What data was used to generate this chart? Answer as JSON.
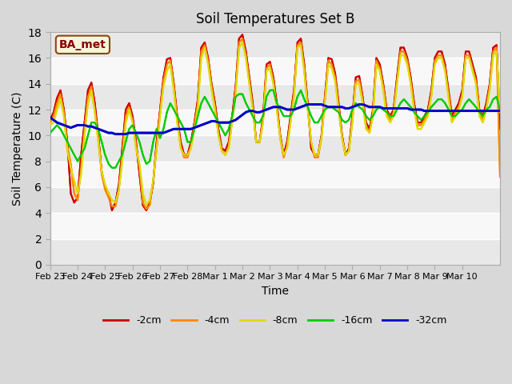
{
  "title": "Soil Temperatures Set B",
  "xlabel": "Time",
  "ylabel": "Soil Temperature (C)",
  "ylim": [
    0,
    18
  ],
  "yticks": [
    0,
    2,
    4,
    6,
    8,
    10,
    12,
    14,
    16,
    18
  ],
  "annotation": "BA_met",
  "bg_color": "#e8e8e8",
  "plot_bg_color": "#f0f0f0",
  "legend_entries": [
    "-2cm",
    "-4cm",
    "-8cm",
    "-16cm",
    "-32cm"
  ],
  "line_colors": [
    "#cc0000",
    "#ff8800",
    "#dddd00",
    "#00cc00",
    "#0000cc"
  ],
  "line_widths": [
    1.5,
    1.5,
    1.5,
    1.5,
    2.0
  ],
  "xtick_labels": [
    "Feb 23",
    "Feb 24",
    "Feb 25",
    "Feb 26",
    "Feb 27",
    "Feb 28",
    "Mar 1",
    "Mar 2",
    "Mar 3",
    "Mar 4",
    "Mar 5",
    "Mar 6",
    "Mar 7",
    "Mar 8",
    "Mar 9",
    "Mar 10"
  ],
  "x_values": [
    0,
    1,
    2,
    3,
    4,
    5,
    6,
    7,
    8,
    9,
    10,
    11,
    12,
    13,
    14,
    15,
    16,
    17,
    18,
    19,
    20,
    21,
    22,
    23,
    24,
    25,
    26,
    27,
    28,
    29,
    30,
    31,
    32,
    33,
    34,
    35,
    36,
    37,
    38,
    39,
    40,
    41,
    42,
    43,
    44,
    45,
    46,
    47,
    48,
    49,
    50,
    51,
    52,
    53,
    54,
    55,
    56,
    57,
    58,
    59,
    60,
    61,
    62,
    63,
    64,
    65,
    66,
    67,
    68,
    69,
    70,
    71,
    72,
    73,
    74,
    75,
    76,
    77,
    78,
    79,
    80,
    81,
    82,
    83,
    84,
    85,
    86,
    87,
    88,
    89,
    90,
    91,
    92,
    93,
    94,
    95,
    96,
    97,
    98,
    99,
    100,
    101,
    102,
    103,
    104,
    105,
    106,
    107,
    108,
    109,
    110,
    111,
    112,
    113,
    114,
    115,
    116,
    117,
    118,
    119,
    120,
    121,
    122,
    123,
    124,
    125,
    126,
    127,
    128,
    129,
    130,
    131
  ],
  "xtick_positions": [
    0,
    8,
    16,
    24,
    32,
    40,
    48,
    56,
    64,
    72,
    80,
    88,
    96,
    104,
    112,
    120
  ],
  "series_2cm": [
    11.2,
    11.8,
    12.9,
    13.5,
    12.0,
    9.5,
    5.5,
    4.8,
    5.2,
    8.5,
    11.0,
    13.5,
    14.1,
    12.5,
    10.0,
    7.2,
    6.0,
    5.5,
    4.2,
    4.8,
    6.2,
    9.0,
    12.0,
    12.5,
    11.5,
    9.5,
    7.0,
    4.6,
    4.2,
    4.8,
    6.3,
    9.5,
    12.0,
    14.5,
    15.9,
    16.0,
    14.0,
    11.5,
    9.5,
    8.5,
    8.5,
    9.5,
    11.0,
    12.8,
    16.8,
    17.2,
    16.0,
    14.0,
    12.5,
    10.5,
    9.0,
    8.8,
    9.5,
    11.5,
    13.8,
    17.5,
    17.8,
    16.5,
    14.5,
    12.5,
    9.5,
    9.5,
    11.5,
    15.5,
    15.7,
    14.5,
    12.5,
    10.0,
    8.5,
    9.5,
    11.5,
    13.5,
    17.2,
    17.5,
    15.5,
    12.5,
    9.0,
    8.5,
    8.5,
    10.0,
    13.0,
    16.0,
    15.9,
    14.8,
    12.5,
    10.0,
    8.5,
    9.0,
    11.5,
    14.5,
    14.6,
    13.0,
    11.0,
    10.5,
    12.0,
    16.0,
    15.5,
    14.0,
    12.0,
    11.5,
    12.0,
    14.5,
    16.8,
    16.8,
    16.0,
    14.5,
    12.5,
    11.0,
    11.0,
    11.5,
    12.0,
    13.5,
    16.0,
    16.5,
    16.5,
    15.5,
    13.5,
    11.5,
    12.0,
    12.5,
    13.5,
    16.5,
    16.5,
    15.5,
    14.5,
    12.0,
    11.5,
    12.5,
    14.0,
    16.8,
    17.0,
    10.5
  ],
  "series_4cm": [
    11.0,
    11.5,
    12.5,
    13.2,
    11.8,
    9.2,
    7.8,
    5.5,
    5.0,
    7.5,
    10.5,
    13.0,
    13.8,
    12.0,
    9.8,
    7.0,
    5.8,
    5.2,
    4.5,
    4.5,
    5.8,
    8.5,
    11.5,
    12.2,
    11.2,
    9.2,
    7.5,
    4.8,
    4.3,
    4.6,
    6.5,
    9.0,
    11.8,
    14.2,
    15.5,
    15.8,
    13.8,
    11.2,
    9.2,
    8.3,
    8.3,
    9.2,
    10.8,
    12.5,
    16.5,
    17.0,
    15.8,
    13.8,
    12.2,
    10.2,
    8.8,
    8.5,
    9.2,
    11.2,
    13.5,
    17.2,
    17.5,
    16.2,
    14.2,
    12.2,
    9.5,
    9.5,
    11.2,
    15.2,
    15.5,
    14.2,
    12.2,
    9.8,
    8.3,
    9.2,
    11.2,
    13.2,
    17.0,
    17.2,
    15.2,
    12.2,
    9.5,
    8.3,
    8.3,
    9.8,
    12.8,
    15.8,
    15.5,
    14.5,
    12.2,
    9.8,
    8.5,
    8.8,
    11.2,
    14.2,
    14.3,
    12.8,
    10.8,
    10.2,
    11.8,
    15.8,
    15.2,
    13.8,
    11.8,
    11.2,
    11.8,
    14.2,
    16.5,
    16.5,
    15.8,
    14.2,
    12.2,
    10.8,
    10.8,
    11.2,
    11.8,
    13.2,
    15.8,
    16.2,
    16.2,
    15.2,
    13.2,
    11.2,
    11.8,
    12.2,
    13.2,
    16.2,
    16.2,
    15.2,
    14.2,
    11.8,
    11.2,
    12.2,
    13.8,
    16.5,
    16.8,
    6.8
  ],
  "series_8cm": [
    10.8,
    11.0,
    12.0,
    12.8,
    11.5,
    8.8,
    7.5,
    6.5,
    5.5,
    7.0,
    10.0,
    12.5,
    13.5,
    11.8,
    9.5,
    7.2,
    6.2,
    5.5,
    5.0,
    4.8,
    5.8,
    8.0,
    11.0,
    12.0,
    11.0,
    9.0,
    7.8,
    5.5,
    4.6,
    5.0,
    6.5,
    9.0,
    11.5,
    13.8,
    15.0,
    15.5,
    13.5,
    11.0,
    9.0,
    8.5,
    8.5,
    9.0,
    10.5,
    12.2,
    16.0,
    16.8,
    15.5,
    13.5,
    12.0,
    10.0,
    8.8,
    8.5,
    9.0,
    11.0,
    13.2,
    16.8,
    17.2,
    16.0,
    14.0,
    12.0,
    9.5,
    9.5,
    11.0,
    15.0,
    15.2,
    14.0,
    12.0,
    9.8,
    8.5,
    9.0,
    11.0,
    13.0,
    16.8,
    17.0,
    15.0,
    12.0,
    9.5,
    8.5,
    8.5,
    9.8,
    12.5,
    15.5,
    15.2,
    14.2,
    12.0,
    9.8,
    8.5,
    8.8,
    11.0,
    14.0,
    14.0,
    12.5,
    10.5,
    10.2,
    11.5,
    15.5,
    15.0,
    13.5,
    11.5,
    11.0,
    11.5,
    14.0,
    16.2,
    16.2,
    15.5,
    14.0,
    12.0,
    10.5,
    10.5,
    11.0,
    11.5,
    13.0,
    15.5,
    16.0,
    16.0,
    15.0,
    13.0,
    11.0,
    11.5,
    12.0,
    13.0,
    16.0,
    16.0,
    15.0,
    14.0,
    11.5,
    11.0,
    12.0,
    13.5,
    16.2,
    16.5,
    11.8
  ],
  "series_16cm": [
    10.2,
    10.5,
    10.8,
    10.5,
    10.0,
    9.5,
    9.0,
    8.5,
    8.0,
    8.5,
    9.0,
    10.0,
    11.0,
    11.0,
    10.5,
    9.5,
    8.5,
    7.8,
    7.5,
    7.5,
    8.0,
    8.5,
    9.5,
    10.5,
    10.8,
    10.2,
    9.5,
    8.5,
    7.8,
    8.0,
    9.5,
    10.5,
    9.8,
    10.5,
    11.8,
    12.5,
    12.0,
    11.5,
    11.0,
    10.5,
    9.5,
    9.5,
    10.5,
    11.5,
    12.5,
    13.0,
    12.5,
    12.0,
    11.5,
    11.0,
    10.5,
    10.0,
    10.5,
    11.5,
    13.0,
    13.2,
    13.2,
    12.5,
    12.0,
    11.5,
    11.0,
    11.0,
    11.5,
    13.0,
    13.5,
    13.5,
    12.5,
    12.0,
    11.5,
    11.5,
    11.5,
    12.0,
    13.0,
    13.5,
    12.8,
    12.2,
    11.5,
    11.0,
    11.0,
    11.5,
    12.0,
    12.2,
    12.2,
    12.0,
    11.8,
    11.2,
    11.0,
    11.2,
    12.0,
    12.5,
    12.2,
    12.0,
    11.5,
    11.2,
    11.5,
    12.0,
    12.2,
    12.0,
    11.8,
    11.5,
    11.5,
    12.0,
    12.5,
    12.8,
    12.5,
    12.2,
    11.8,
    11.5,
    11.2,
    11.5,
    11.8,
    12.2,
    12.5,
    12.8,
    12.8,
    12.5,
    12.0,
    11.5,
    11.5,
    11.8,
    12.0,
    12.5,
    12.8,
    12.5,
    12.2,
    11.8,
    11.5,
    12.0,
    12.2,
    12.8,
    13.0,
    12.0
  ],
  "series_32cm": [
    11.4,
    11.2,
    11.0,
    10.9,
    10.8,
    10.7,
    10.6,
    10.7,
    10.8,
    10.8,
    10.8,
    10.7,
    10.7,
    10.6,
    10.5,
    10.4,
    10.3,
    10.2,
    10.2,
    10.1,
    10.1,
    10.1,
    10.1,
    10.2,
    10.2,
    10.2,
    10.2,
    10.2,
    10.2,
    10.2,
    10.2,
    10.2,
    10.2,
    10.2,
    10.3,
    10.4,
    10.5,
    10.5,
    10.5,
    10.5,
    10.5,
    10.5,
    10.6,
    10.7,
    10.8,
    10.9,
    11.0,
    11.1,
    11.1,
    11.0,
    11.0,
    11.0,
    11.0,
    11.1,
    11.2,
    11.4,
    11.6,
    11.8,
    11.9,
    11.9,
    11.8,
    11.8,
    11.9,
    12.0,
    12.1,
    12.2,
    12.2,
    12.2,
    12.1,
    12.0,
    12.0,
    12.0,
    12.1,
    12.2,
    12.3,
    12.4,
    12.4,
    12.4,
    12.4,
    12.4,
    12.3,
    12.2,
    12.2,
    12.2,
    12.2,
    12.2,
    12.1,
    12.1,
    12.2,
    12.3,
    12.4,
    12.4,
    12.3,
    12.2,
    12.2,
    12.2,
    12.2,
    12.1,
    12.1,
    12.1,
    12.1,
    12.1,
    12.1,
    12.1,
    12.1,
    12.0,
    12.0,
    12.0,
    12.0,
    11.9,
    11.9,
    11.9,
    11.9,
    11.9,
    11.9,
    11.9,
    11.9,
    11.9,
    11.9,
    11.9,
    11.9,
    11.9,
    11.9,
    11.9,
    11.9,
    11.9,
    11.9,
    11.9,
    11.9,
    11.9,
    11.9,
    11.9
  ]
}
